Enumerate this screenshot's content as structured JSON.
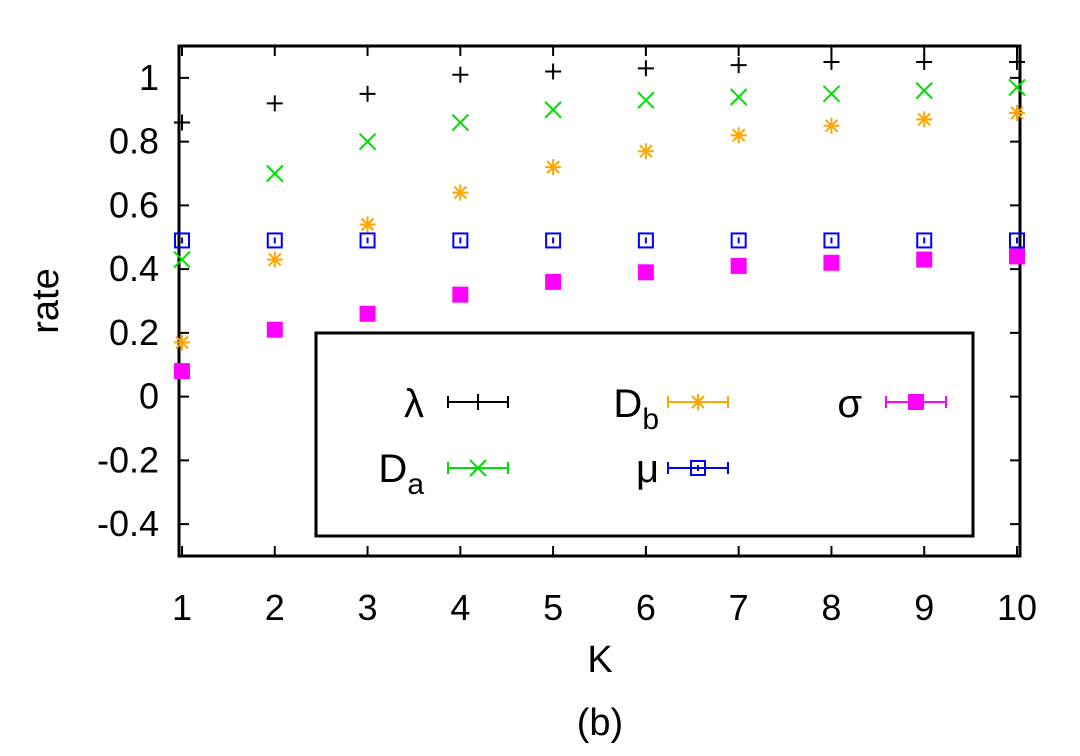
{
  "chart_data": {
    "type": "scatter",
    "title": "",
    "caption": "(b)",
    "xlabel": "K",
    "ylabel": "rate",
    "xlim": [
      1,
      10
    ],
    "ylim": [
      -0.5,
      1.1
    ],
    "x": [
      1,
      2,
      3,
      4,
      5,
      6,
      7,
      8,
      9,
      10
    ],
    "xticks": [
      "1",
      "2",
      "3",
      "4",
      "5",
      "6",
      "7",
      "8",
      "9",
      "10"
    ],
    "yticks": [
      "-0.4",
      "-0.2",
      "0",
      "0.2",
      "0.4",
      "0.6",
      "0.8",
      "1"
    ],
    "grid": false,
    "legend_position": "bottom-right (inside plot)",
    "series": [
      {
        "name": "λ",
        "sub": "",
        "marker": "plus",
        "color": "#000000",
        "values": [
          0.86,
          0.92,
          0.95,
          1.01,
          1.02,
          1.03,
          1.04,
          1.05,
          1.05,
          1.05
        ]
      },
      {
        "name": "D",
        "sub": "b",
        "marker": "asterisk",
        "color": "#ffa500",
        "values": [
          0.17,
          0.43,
          0.54,
          0.64,
          0.72,
          0.77,
          0.82,
          0.85,
          0.87,
          0.89
        ]
      },
      {
        "name": "σ",
        "sub": "",
        "marker": "filled-square",
        "color": "#ff00ff",
        "values": [
          0.08,
          0.21,
          0.26,
          0.32,
          0.36,
          0.39,
          0.41,
          0.42,
          0.43,
          0.44
        ]
      },
      {
        "name": "D",
        "sub": "a",
        "marker": "cross",
        "color": "#00e000",
        "values": [
          0.43,
          0.7,
          0.8,
          0.86,
          0.9,
          0.93,
          0.94,
          0.95,
          0.96,
          0.97
        ]
      },
      {
        "name": "μ",
        "sub": "",
        "marker": "open-square",
        "color": "#0000ff",
        "values": [
          0.49,
          0.49,
          0.49,
          0.49,
          0.49,
          0.49,
          0.49,
          0.49,
          0.49,
          0.49
        ]
      }
    ]
  }
}
